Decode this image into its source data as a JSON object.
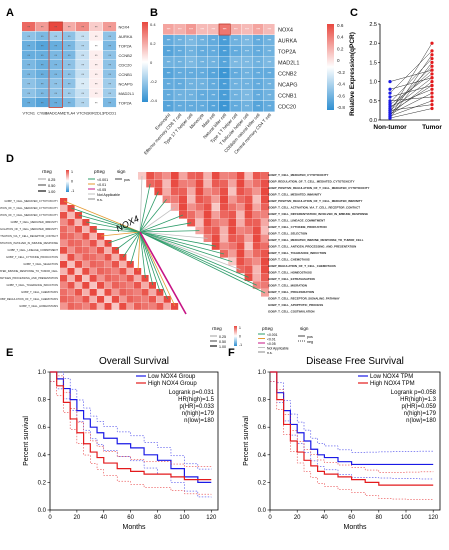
{
  "panels": {
    "a": "A",
    "b": "B",
    "c": "C",
    "d": "D",
    "e": "E",
    "f": "F"
  },
  "colors": {
    "high": "#e8483f",
    "mid": "#ffffff",
    "low": "#2f8fd1",
    "blue": "#1a1ae6",
    "red": "#e31a1c",
    "green": "#2e9c6a"
  },
  "chart_data": [
    {
      "panel": "A",
      "type": "heatmap",
      "rows": [
        "NOX4",
        "AURKA",
        "TOP2A",
        "CCNB2",
        "CDC20",
        "CCNB1",
        "NCAPG",
        "MAD2L1",
        "TOP2A"
      ],
      "cols": [
        "VTCN1",
        "CYBB",
        "MADCAM1",
        "CTLA4",
        "VTCN1",
        "KIR2DL1",
        "PDCD1"
      ],
      "highlight_col": "MADCAM1",
      "scale_ticks": [
        "0.4",
        "0.2",
        "0",
        "-0.2",
        "-0.4"
      ],
      "values": [
        [
          0.45,
          0.3,
          0.55,
          0.25,
          0.35,
          0.15,
          0.3
        ],
        [
          -0.3,
          -0.35,
          -0.25,
          -0.3,
          -0.15,
          0.05,
          -0.3
        ],
        [
          -0.4,
          -0.45,
          -0.4,
          -0.35,
          -0.2,
          0.0,
          -0.35
        ],
        [
          -0.4,
          -0.4,
          -0.35,
          -0.35,
          -0.15,
          0.05,
          -0.3
        ],
        [
          -0.35,
          -0.4,
          -0.35,
          -0.3,
          -0.15,
          0.05,
          -0.3
        ],
        [
          -0.35,
          -0.4,
          -0.35,
          -0.3,
          -0.15,
          0.05,
          -0.3
        ],
        [
          -0.3,
          -0.35,
          -0.3,
          -0.3,
          -0.1,
          0.05,
          -0.25
        ],
        [
          -0.3,
          -0.35,
          -0.3,
          -0.25,
          -0.15,
          0.05,
          -0.25
        ],
        [
          -0.4,
          -0.45,
          -0.4,
          -0.35,
          -0.2,
          0.0,
          -0.35
        ]
      ]
    },
    {
      "panel": "B",
      "type": "heatmap",
      "rows": [
        "NOX4",
        "AURKA",
        "TOP2A",
        "MAD2L1",
        "CCNB2",
        "NCAPG",
        "CCNB1",
        "CDC20"
      ],
      "cols": [
        "Eosinophil",
        "Effector memory CD8 T cell",
        "Type 17 T helper cell",
        "Monocyte",
        "Mast cell",
        "Natural killer cell",
        "Type 1 T helper cell",
        "T follicular helper cell",
        "CD56dim natural killer cell",
        "Central memory CD4 T cell"
      ],
      "highlight_col": "Natural killer cell",
      "scale_ticks": [
        "0.6",
        "0.4",
        "0.2",
        "0",
        "-0.2",
        "-0.4",
        "-0.6",
        "-0.8"
      ],
      "values": [
        [
          0.4,
          0.35,
          0.45,
          0.3,
          0.3,
          0.6,
          0.35,
          0.3,
          0.4,
          0.3
        ],
        [
          -0.6,
          -0.55,
          -0.5,
          -0.55,
          -0.6,
          -0.7,
          -0.55,
          -0.5,
          -0.6,
          -0.55
        ],
        [
          -0.65,
          -0.6,
          -0.55,
          -0.6,
          -0.6,
          -0.7,
          -0.6,
          -0.55,
          -0.6,
          -0.55
        ],
        [
          -0.55,
          -0.55,
          -0.5,
          -0.55,
          -0.55,
          -0.65,
          -0.5,
          -0.5,
          -0.55,
          -0.5
        ],
        [
          -0.65,
          -0.6,
          -0.6,
          -0.6,
          -0.65,
          -0.75,
          -0.6,
          -0.55,
          -0.6,
          -0.6
        ],
        [
          -0.6,
          -0.6,
          -0.55,
          -0.55,
          -0.6,
          -0.7,
          -0.55,
          -0.55,
          -0.6,
          -0.55
        ],
        [
          -0.6,
          -0.55,
          -0.55,
          -0.6,
          -0.6,
          -0.7,
          -0.55,
          -0.5,
          -0.6,
          -0.55
        ],
        [
          -0.65,
          -0.6,
          -0.6,
          -0.6,
          -0.65,
          -0.75,
          -0.6,
          -0.55,
          -0.65,
          -0.6
        ]
      ]
    },
    {
      "panel": "C",
      "type": "scatter",
      "ylabel": "Relative Expression(qPCR)",
      "categories": [
        "Non-tumor",
        "Tumor"
      ],
      "ylim": [
        0,
        2.5
      ],
      "yticks": [
        "0.0",
        "0.5",
        "1.0",
        "1.5",
        "2.0",
        "2.5"
      ],
      "pairs": [
        [
          0.05,
          0.3
        ],
        [
          0.1,
          0.5
        ],
        [
          0.15,
          0.7
        ],
        [
          0.2,
          0.9
        ],
        [
          0.25,
          1.1
        ],
        [
          0.3,
          1.3
        ],
        [
          0.05,
          1.5
        ],
        [
          0.1,
          1.7
        ],
        [
          0.2,
          2.0
        ],
        [
          0.15,
          1.0
        ],
        [
          0.35,
          0.8
        ],
        [
          0.4,
          1.2
        ],
        [
          0.3,
          1.4
        ],
        [
          0.5,
          0.6
        ],
        [
          0.6,
          0.9
        ],
        [
          0.8,
          1.1
        ],
        [
          1.0,
          1.3
        ],
        [
          0.25,
          0.4
        ],
        [
          0.45,
          1.6
        ],
        [
          0.7,
          1.8
        ]
      ]
    },
    {
      "panel": "D",
      "type": "heatmap",
      "center_label": "NOX4",
      "legend_titles": [
        "rSeg",
        "pSeg",
        "sign"
      ],
      "legend_items": [
        "0.25",
        "0.50",
        "1.00",
        "<0.001",
        "<0.01",
        "<0.05",
        "Not Applicable",
        "n.s.",
        "pos",
        "neg"
      ],
      "scale_ticks": [
        "1",
        "0",
        "-1"
      ],
      "terms": [
        "GOBP_T_CELL_MEDIATED_CYTOTOXICITY",
        "GOBP_REGULATION_OF_T_CELL_MEDIATED_CYTOTOXICITY",
        "GOBP_POSITIVE_REGULATION_OF_T_CELL_MEDIATED_CYTOTOXICITY",
        "GOBP_T_CELL_MEDIATED_IMMUNITY",
        "GOBP_POSITIVE_REGULATION_OF_T_CELL_MEDIATED_IMMUNITY",
        "GOBP_T_CELL_ACTIVATION_VIA_T_CELL_RECEPTOR_CONTACT",
        "GOBP_T_CELL_DIFFERENTIATION_INVOLVED_IN_IMMUNE_RESPONSE",
        "GOBP_T_CELL_LINEAGE_COMMITMENT",
        "GOBP_T_CELL_CYTOKINE_PRODUCTION",
        "GOBP_T_CELL_SELECTION",
        "GOBP_T_CELL_MEDIATED_IMMUNE_RESPONSE_TO_TUMOR_CELL",
        "GOBP_T_CELL_ANTIGEN_PROCESSING_AND_PRESENTATION",
        "GOBP_T_CELL_TOLERANCE_INDUCTION",
        "GOBP_T_CELL_CHEMOTAXIS",
        "GOBP_REGULATION_OF_T_CELL_CHEMOTAXIS",
        "GOBP_T_CELL_HOMEOSTASIS",
        "GOBP_T_CELL_EXTRAVASATION",
        "GOBP_T_CELL_MIGRATION",
        "GOBP_T_CELL_PROLIFERATION",
        "GOBP_T_CELL_RECEPTOR_SIGNALING_PATHWAY",
        "GOBP_T_CELL_APOPTOTIC_PROCESS",
        "GOBP_T_CELL_COSTIMULATION"
      ]
    },
    {
      "panel": "E",
      "type": "line",
      "title": "Overall Survival",
      "xlabel": "Months",
      "ylabel": "Percent survival",
      "xlim": [
        0,
        125
      ],
      "ylim": [
        0,
        1
      ],
      "xticks": [
        "0",
        "20",
        "40",
        "60",
        "80",
        "100",
        "120"
      ],
      "yticks": [
        "0.0",
        "0.2",
        "0.4",
        "0.6",
        "0.8",
        "1.0"
      ],
      "legend": [
        "Low NOX4 Group",
        "High NOX4 Group"
      ],
      "stats": [
        "Logrank p=0.031",
        "HR(high)=1.5",
        "p(HR)=0.033",
        "n(high)=179",
        "n(low)=180"
      ],
      "series": [
        {
          "name": "Low NOX4 Group",
          "x": [
            0,
            5,
            10,
            15,
            20,
            25,
            30,
            35,
            40,
            50,
            60,
            70,
            80,
            90,
            100,
            110,
            120
          ],
          "values": [
            1.0,
            0.95,
            0.88,
            0.8,
            0.72,
            0.66,
            0.6,
            0.56,
            0.52,
            0.48,
            0.45,
            0.4,
            0.36,
            0.3,
            0.24,
            0.2,
            0.2
          ]
        },
        {
          "name": "High NOX4 Group",
          "x": [
            0,
            5,
            10,
            15,
            20,
            25,
            30,
            35,
            40,
            50,
            60,
            70,
            80,
            90,
            100,
            110,
            120
          ],
          "values": [
            1.0,
            0.9,
            0.78,
            0.66,
            0.56,
            0.48,
            0.42,
            0.38,
            0.34,
            0.3,
            0.28,
            0.26,
            0.26,
            0.24,
            0.22,
            0.22,
            0.22
          ]
        }
      ]
    },
    {
      "panel": "F",
      "type": "line",
      "title": "Disease Free Survival",
      "xlabel": "Months",
      "ylabel": "Percent survival",
      "xlim": [
        0,
        125
      ],
      "ylim": [
        0,
        1
      ],
      "xticks": [
        "0",
        "20",
        "40",
        "60",
        "80",
        "100",
        "120"
      ],
      "yticks": [
        "0.0",
        "0.2",
        "0.4",
        "0.6",
        "0.8",
        "1.0"
      ],
      "legend": [
        "Low NOX4 TPM",
        "High NOX4 TPM"
      ],
      "stats": [
        "Logrank p=0.058",
        "HR(high)=1.3",
        "p(HR)=0.059",
        "n(high)=179",
        "n(low)=180"
      ],
      "series": [
        {
          "name": "Low NOX4 TPM",
          "x": [
            0,
            5,
            10,
            15,
            20,
            25,
            30,
            35,
            40,
            50,
            60,
            70,
            80,
            90,
            100,
            110,
            120
          ],
          "values": [
            1.0,
            0.85,
            0.72,
            0.62,
            0.56,
            0.5,
            0.44,
            0.4,
            0.38,
            0.35,
            0.33,
            0.33,
            0.33,
            0.33,
            0.33,
            0.33,
            0.33
          ]
        },
        {
          "name": "High NOX4 TPM",
          "x": [
            0,
            5,
            10,
            15,
            20,
            25,
            30,
            35,
            40,
            50,
            60,
            70,
            80,
            90,
            100,
            110,
            120
          ],
          "values": [
            1.0,
            0.8,
            0.62,
            0.5,
            0.42,
            0.36,
            0.32,
            0.28,
            0.26,
            0.24,
            0.22,
            0.2,
            0.18,
            0.18,
            0.18,
            0.18,
            0.18
          ]
        }
      ]
    }
  ]
}
